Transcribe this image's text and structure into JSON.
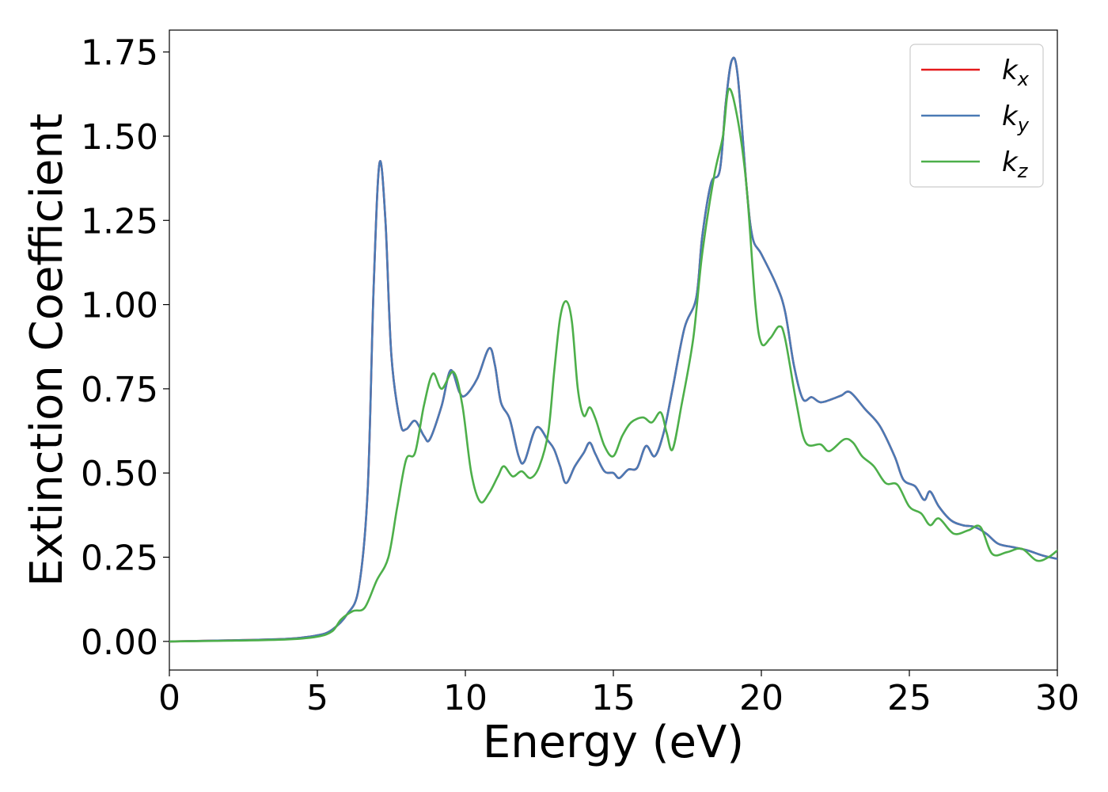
{
  "chart_data": {
    "type": "line",
    "xlabel": "Energy (eV)",
    "ylabel": "Extinction Coefficient",
    "xlim": [
      0,
      30
    ],
    "ylim": [
      -0.085,
      1.815
    ],
    "xticks": [
      0,
      5,
      10,
      15,
      20,
      25,
      30
    ],
    "yticks": [
      0.0,
      0.25,
      0.5,
      0.75,
      1.0,
      1.25,
      1.5,
      1.75
    ],
    "xtick_labels": [
      "0",
      "5",
      "10",
      "15",
      "20",
      "25",
      "30"
    ],
    "ytick_labels": [
      "0.00",
      "0.25",
      "0.50",
      "0.75",
      "1.00",
      "1.25",
      "1.50",
      "1.75"
    ],
    "grid": false,
    "legend_position": "top-right",
    "series": [
      {
        "name": "k",
        "subscript": "x",
        "color": "#e41a1c",
        "points": [
          [
            0,
            0
          ],
          [
            2,
            0.003
          ],
          [
            4,
            0.008
          ],
          [
            5,
            0.018
          ],
          [
            5.5,
            0.035
          ],
          [
            6,
            0.08
          ],
          [
            6.4,
            0.16
          ],
          [
            6.7,
            0.45
          ],
          [
            6.9,
            1.05
          ],
          [
            7.1,
            1.42
          ],
          [
            7.3,
            1.25
          ],
          [
            7.5,
            0.85
          ],
          [
            7.8,
            0.65
          ],
          [
            8.0,
            0.63
          ],
          [
            8.3,
            0.655
          ],
          [
            8.6,
            0.61
          ],
          [
            8.8,
            0.6
          ],
          [
            9.2,
            0.7
          ],
          [
            9.5,
            0.805
          ],
          [
            9.8,
            0.74
          ],
          [
            10.0,
            0.73
          ],
          [
            10.4,
            0.78
          ],
          [
            10.8,
            0.87
          ],
          [
            11.0,
            0.82
          ],
          [
            11.2,
            0.71
          ],
          [
            11.5,
            0.66
          ],
          [
            11.8,
            0.55
          ],
          [
            12.0,
            0.535
          ],
          [
            12.4,
            0.635
          ],
          [
            12.8,
            0.595
          ],
          [
            13.0,
            0.57
          ],
          [
            13.2,
            0.52
          ],
          [
            13.4,
            0.47
          ],
          [
            13.7,
            0.52
          ],
          [
            14.0,
            0.56
          ],
          [
            14.2,
            0.59
          ],
          [
            14.4,
            0.555
          ],
          [
            14.7,
            0.505
          ],
          [
            15.0,
            0.5
          ],
          [
            15.2,
            0.485
          ],
          [
            15.5,
            0.51
          ],
          [
            15.8,
            0.515
          ],
          [
            16.1,
            0.58
          ],
          [
            16.4,
            0.55
          ],
          [
            16.7,
            0.62
          ],
          [
            17.0,
            0.75
          ],
          [
            17.4,
            0.93
          ],
          [
            17.8,
            1.02
          ],
          [
            18.0,
            1.2
          ],
          [
            18.3,
            1.36
          ],
          [
            18.6,
            1.4
          ],
          [
            18.8,
            1.6
          ],
          [
            19.0,
            1.725
          ],
          [
            19.2,
            1.68
          ],
          [
            19.5,
            1.35
          ],
          [
            19.7,
            1.2
          ],
          [
            20.0,
            1.15
          ],
          [
            20.5,
            1.06
          ],
          [
            20.8,
            0.98
          ],
          [
            21.1,
            0.82
          ],
          [
            21.4,
            0.72
          ],
          [
            21.7,
            0.725
          ],
          [
            22.0,
            0.71
          ],
          [
            22.4,
            0.72
          ],
          [
            22.7,
            0.73
          ],
          [
            23.0,
            0.74
          ],
          [
            23.5,
            0.69
          ],
          [
            24.0,
            0.64
          ],
          [
            24.5,
            0.55
          ],
          [
            24.8,
            0.48
          ],
          [
            25.2,
            0.46
          ],
          [
            25.5,
            0.42
          ],
          [
            25.7,
            0.445
          ],
          [
            26.0,
            0.4
          ],
          [
            26.4,
            0.36
          ],
          [
            26.8,
            0.345
          ],
          [
            27.2,
            0.34
          ],
          [
            27.6,
            0.32
          ],
          [
            28.0,
            0.29
          ],
          [
            28.5,
            0.28
          ],
          [
            29.0,
            0.27
          ],
          [
            29.5,
            0.255
          ],
          [
            30.0,
            0.245
          ]
        ]
      },
      {
        "name": "k",
        "subscript": "y",
        "color": "#4a7ab5",
        "points": [
          [
            0,
            0
          ],
          [
            2,
            0.003
          ],
          [
            4,
            0.008
          ],
          [
            5,
            0.018
          ],
          [
            5.5,
            0.035
          ],
          [
            6,
            0.08
          ],
          [
            6.4,
            0.16
          ],
          [
            6.7,
            0.45
          ],
          [
            6.9,
            1.05
          ],
          [
            7.1,
            1.42
          ],
          [
            7.3,
            1.25
          ],
          [
            7.5,
            0.85
          ],
          [
            7.8,
            0.65
          ],
          [
            8.0,
            0.63
          ],
          [
            8.3,
            0.655
          ],
          [
            8.6,
            0.61
          ],
          [
            8.8,
            0.6
          ],
          [
            9.2,
            0.7
          ],
          [
            9.5,
            0.805
          ],
          [
            9.8,
            0.74
          ],
          [
            10.0,
            0.73
          ],
          [
            10.4,
            0.78
          ],
          [
            10.8,
            0.87
          ],
          [
            11.0,
            0.82
          ],
          [
            11.2,
            0.71
          ],
          [
            11.5,
            0.66
          ],
          [
            11.8,
            0.55
          ],
          [
            12.0,
            0.535
          ],
          [
            12.4,
            0.635
          ],
          [
            12.8,
            0.595
          ],
          [
            13.0,
            0.57
          ],
          [
            13.2,
            0.52
          ],
          [
            13.4,
            0.47
          ],
          [
            13.7,
            0.52
          ],
          [
            14.0,
            0.56
          ],
          [
            14.2,
            0.59
          ],
          [
            14.4,
            0.555
          ],
          [
            14.7,
            0.505
          ],
          [
            15.0,
            0.5
          ],
          [
            15.2,
            0.485
          ],
          [
            15.5,
            0.51
          ],
          [
            15.8,
            0.515
          ],
          [
            16.1,
            0.58
          ],
          [
            16.4,
            0.55
          ],
          [
            16.7,
            0.62
          ],
          [
            17.0,
            0.75
          ],
          [
            17.4,
            0.93
          ],
          [
            17.8,
            1.02
          ],
          [
            18.0,
            1.2
          ],
          [
            18.3,
            1.36
          ],
          [
            18.6,
            1.4
          ],
          [
            18.8,
            1.6
          ],
          [
            19.0,
            1.725
          ],
          [
            19.2,
            1.68
          ],
          [
            19.5,
            1.35
          ],
          [
            19.7,
            1.2
          ],
          [
            20.0,
            1.15
          ],
          [
            20.5,
            1.06
          ],
          [
            20.8,
            0.98
          ],
          [
            21.1,
            0.82
          ],
          [
            21.4,
            0.72
          ],
          [
            21.7,
            0.725
          ],
          [
            22.0,
            0.71
          ],
          [
            22.4,
            0.72
          ],
          [
            22.7,
            0.73
          ],
          [
            23.0,
            0.74
          ],
          [
            23.5,
            0.69
          ],
          [
            24.0,
            0.64
          ],
          [
            24.5,
            0.55
          ],
          [
            24.8,
            0.48
          ],
          [
            25.2,
            0.46
          ],
          [
            25.5,
            0.42
          ],
          [
            25.7,
            0.445
          ],
          [
            26.0,
            0.4
          ],
          [
            26.4,
            0.36
          ],
          [
            26.8,
            0.345
          ],
          [
            27.2,
            0.34
          ],
          [
            27.6,
            0.32
          ],
          [
            28.0,
            0.29
          ],
          [
            28.5,
            0.28
          ],
          [
            29.0,
            0.27
          ],
          [
            29.5,
            0.255
          ],
          [
            30.0,
            0.245
          ]
        ]
      },
      {
        "name": "k",
        "subscript": "z",
        "color": "#4daf4a",
        "points": [
          [
            0,
            0
          ],
          [
            2,
            0.002
          ],
          [
            4,
            0.006
          ],
          [
            5,
            0.014
          ],
          [
            5.5,
            0.03
          ],
          [
            5.8,
            0.065
          ],
          [
            6.2,
            0.09
          ],
          [
            6.6,
            0.1
          ],
          [
            7.0,
            0.18
          ],
          [
            7.4,
            0.25
          ],
          [
            7.7,
            0.4
          ],
          [
            8.0,
            0.54
          ],
          [
            8.3,
            0.56
          ],
          [
            8.6,
            0.7
          ],
          [
            8.9,
            0.795
          ],
          [
            9.2,
            0.75
          ],
          [
            9.6,
            0.8
          ],
          [
            9.9,
            0.7
          ],
          [
            10.2,
            0.5
          ],
          [
            10.5,
            0.415
          ],
          [
            10.8,
            0.44
          ],
          [
            11.1,
            0.49
          ],
          [
            11.3,
            0.52
          ],
          [
            11.6,
            0.49
          ],
          [
            11.9,
            0.505
          ],
          [
            12.2,
            0.485
          ],
          [
            12.5,
            0.52
          ],
          [
            12.8,
            0.62
          ],
          [
            13.0,
            0.8
          ],
          [
            13.2,
            0.96
          ],
          [
            13.4,
            1.01
          ],
          [
            13.6,
            0.95
          ],
          [
            13.8,
            0.75
          ],
          [
            14.0,
            0.67
          ],
          [
            14.2,
            0.695
          ],
          [
            14.4,
            0.66
          ],
          [
            14.7,
            0.58
          ],
          [
            15.0,
            0.55
          ],
          [
            15.3,
            0.61
          ],
          [
            15.6,
            0.65
          ],
          [
            16.0,
            0.665
          ],
          [
            16.3,
            0.65
          ],
          [
            16.6,
            0.68
          ],
          [
            16.8,
            0.62
          ],
          [
            17.0,
            0.57
          ],
          [
            17.3,
            0.7
          ],
          [
            17.7,
            0.9
          ],
          [
            18.0,
            1.15
          ],
          [
            18.4,
            1.38
          ],
          [
            18.7,
            1.5
          ],
          [
            18.9,
            1.64
          ],
          [
            19.2,
            1.55
          ],
          [
            19.5,
            1.35
          ],
          [
            19.8,
            1.0
          ],
          [
            20.0,
            0.885
          ],
          [
            20.3,
            0.9
          ],
          [
            20.6,
            0.935
          ],
          [
            20.8,
            0.9
          ],
          [
            21.2,
            0.7
          ],
          [
            21.5,
            0.59
          ],
          [
            22.0,
            0.585
          ],
          [
            22.3,
            0.565
          ],
          [
            22.8,
            0.6
          ],
          [
            23.1,
            0.59
          ],
          [
            23.4,
            0.55
          ],
          [
            23.8,
            0.52
          ],
          [
            24.2,
            0.47
          ],
          [
            24.6,
            0.465
          ],
          [
            25.0,
            0.4
          ],
          [
            25.4,
            0.38
          ],
          [
            25.7,
            0.345
          ],
          [
            26.0,
            0.365
          ],
          [
            26.5,
            0.32
          ],
          [
            27.0,
            0.33
          ],
          [
            27.4,
            0.34
          ],
          [
            27.8,
            0.26
          ],
          [
            28.3,
            0.265
          ],
          [
            28.8,
            0.275
          ],
          [
            29.3,
            0.24
          ],
          [
            29.7,
            0.25
          ],
          [
            30.0,
            0.27
          ]
        ]
      }
    ]
  }
}
